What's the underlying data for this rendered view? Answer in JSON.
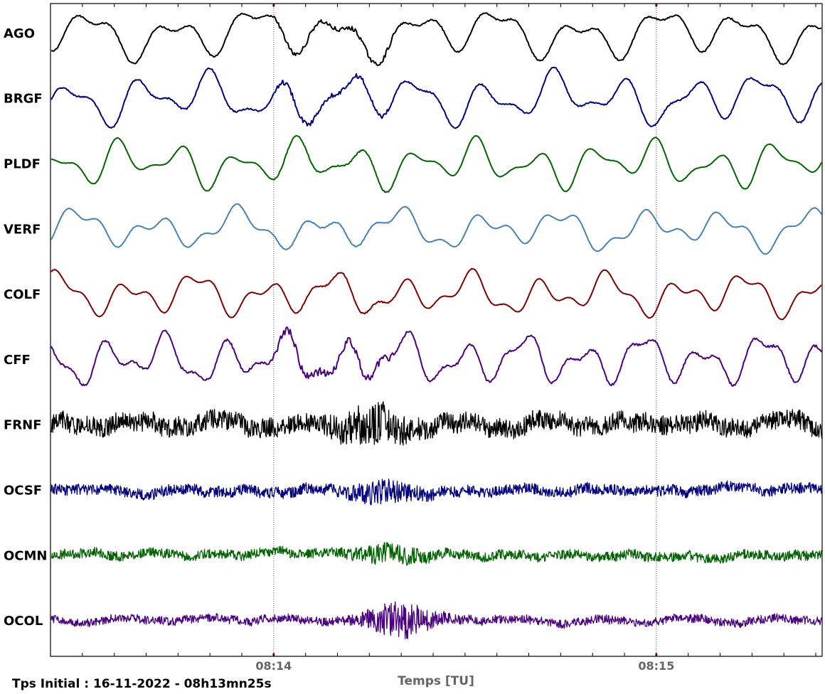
{
  "chart_data": {
    "type": "line",
    "title": "",
    "xlabel": "Temps [TU]",
    "ylabel": "",
    "footer": "Tps Initial : 16-11-2022 - 08h13mn25s",
    "x_ticks": [
      {
        "time": "08:14",
        "label": "08:14"
      },
      {
        "time": "08:15",
        "label": "08:15"
      }
    ],
    "xlim": [
      "08:13:25",
      "08:15:26"
    ],
    "minor_tick_step_seconds": 5,
    "grid": "vertical dotted lines at major ticks",
    "series": [
      {
        "name": "AGO",
        "color": "#000000",
        "character": "low-frequency oscillation, moderate noise",
        "noise": 0.15,
        "amp_rel": 1.0
      },
      {
        "name": "BRGF",
        "color": "#000080",
        "character": "low-frequency oscillation, burst of noise near 08:14",
        "noise": 0.15,
        "amp_rel": 1.0
      },
      {
        "name": "PLDF",
        "color": "#006400",
        "character": "low-frequency oscillation",
        "noise": 0.05,
        "amp_rel": 0.9
      },
      {
        "name": "VERF",
        "color": "#4682b4",
        "character": "low-frequency oscillation with noisy segment after 08:14",
        "noise": 0.05,
        "amp_rel": 0.8
      },
      {
        "name": "COLF",
        "color": "#800000",
        "character": "low-frequency oscillation with noisy segment after 08:14",
        "noise": 0.05,
        "amp_rel": 0.85
      },
      {
        "name": "CFF",
        "color": "#4b0082",
        "character": "low-frequency oscillation, thick noisy trace",
        "noise": 0.25,
        "amp_rel": 1.0
      },
      {
        "name": "FRNF",
        "color": "#000000",
        "character": "high-frequency noise with slow drift",
        "noise": 1.0,
        "amp_rel": 0.8
      },
      {
        "name": "OCSF",
        "color": "#000080",
        "character": "high-frequency noise band, occasional spikes",
        "noise": 1.0,
        "amp_rel": 0.45
      },
      {
        "name": "OCMN",
        "color": "#006400",
        "character": "high-frequency noise with bursts",
        "noise": 1.0,
        "amp_rel": 0.4
      },
      {
        "name": "OCOL",
        "color": "#4b0082",
        "character": "high-frequency noise with strong burst just after 08:14",
        "noise": 1.0,
        "amp_rel": 0.35
      }
    ]
  }
}
